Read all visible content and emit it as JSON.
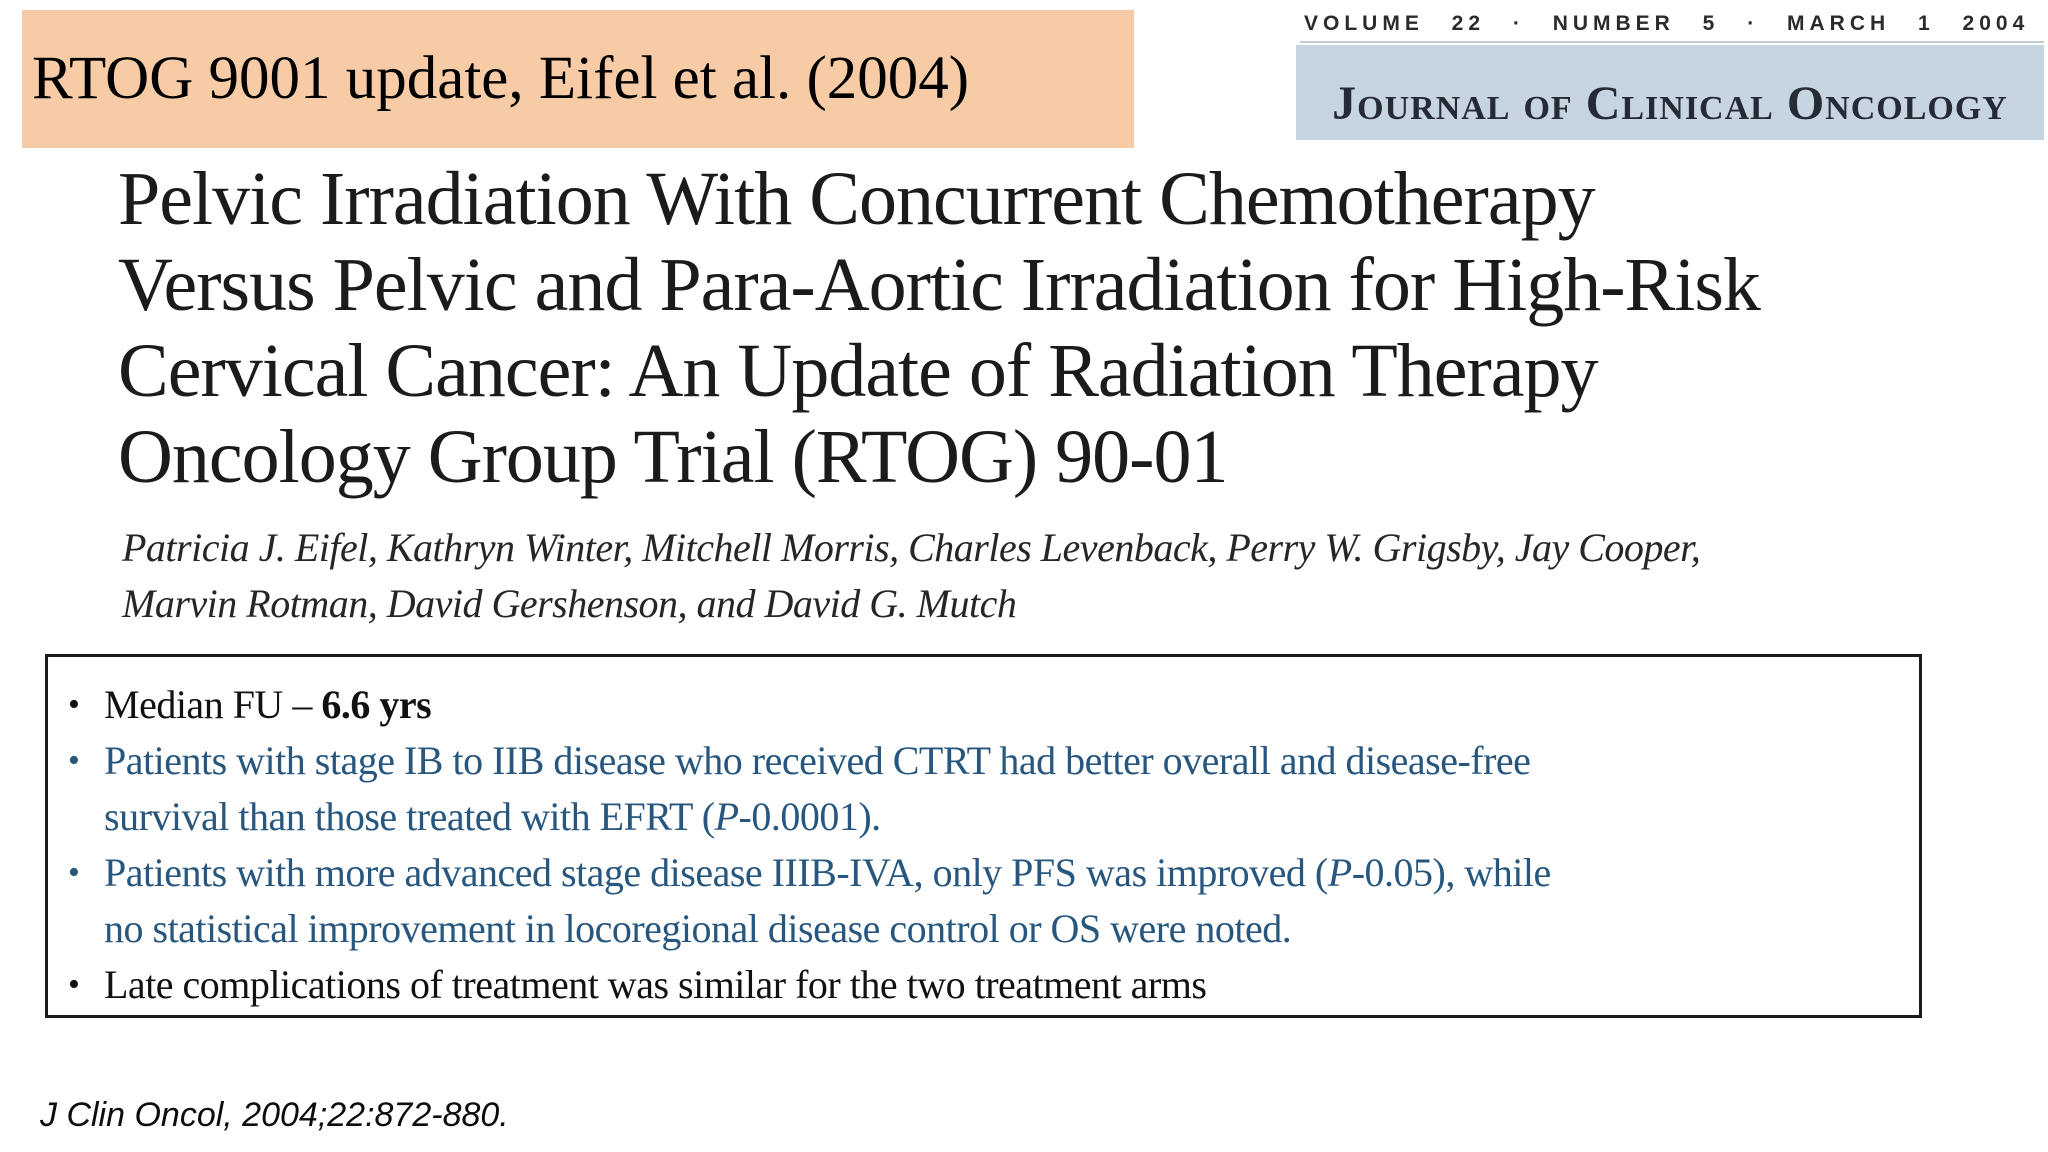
{
  "slide_title_banner": {
    "label": "RTOG 9001 update, Eifel et al. (2004)",
    "background": "#f6cba6"
  },
  "journal_header": {
    "issue_line": "VOLUME 22 · NUMBER 5 · MARCH 1 2004",
    "journal_name": "Journal of Clinical Oncology",
    "banner_background": "#c7d5e3"
  },
  "article": {
    "title_lines": [
      "Pelvic Irradiation With Concurrent Chemotherapy",
      "Versus Pelvic and Para-Aortic Irradiation for High-Risk",
      "Cervical Cancer: An Update of Radiation Therapy",
      "Oncology Group Trial (RTOG) 90-01"
    ],
    "author_lines": [
      "Patricia J. Eifel, Kathryn Winter, Mitchell Morris, Charles Levenback, Perry W. Grigsby, Jay Cooper,",
      "Marvin Rotman, David Gershenson, and David G. Mutch"
    ]
  },
  "summary_box": {
    "text_colors": {
      "black": "#111111",
      "blue": "#27577f"
    },
    "bullets": [
      {
        "color": "#111111",
        "lines": [
          [
            {
              "t": "Median FU – "
            },
            {
              "t": "6.6 yrs",
              "bold": true
            }
          ]
        ]
      },
      {
        "color": "#27577f",
        "lines": [
          [
            {
              "t": "Patients with stage IB to IIB disease who received CTRT had better overall and disease-free"
            }
          ],
          [
            {
              "t": "survival than those treated with EFRT ("
            },
            {
              "t": "P",
              "italic": true
            },
            {
              "t": "-0.0001)."
            }
          ]
        ]
      },
      {
        "color": "#27577f",
        "lines": [
          [
            {
              "t": "Patients with more advanced stage disease IIIB-IVA, only PFS was improved ("
            },
            {
              "t": "P",
              "italic": true
            },
            {
              "t": "-0.05), while"
            }
          ],
          [
            {
              "t": "no statistical improvement in locoregional disease control or OS were noted."
            }
          ]
        ]
      },
      {
        "color": "#111111",
        "lines": [
          [
            {
              "t": "Late complications of treatment was similar for the two treatment arms"
            }
          ]
        ]
      }
    ]
  },
  "citation": "J Clin Oncol, 2004;22:872-880."
}
